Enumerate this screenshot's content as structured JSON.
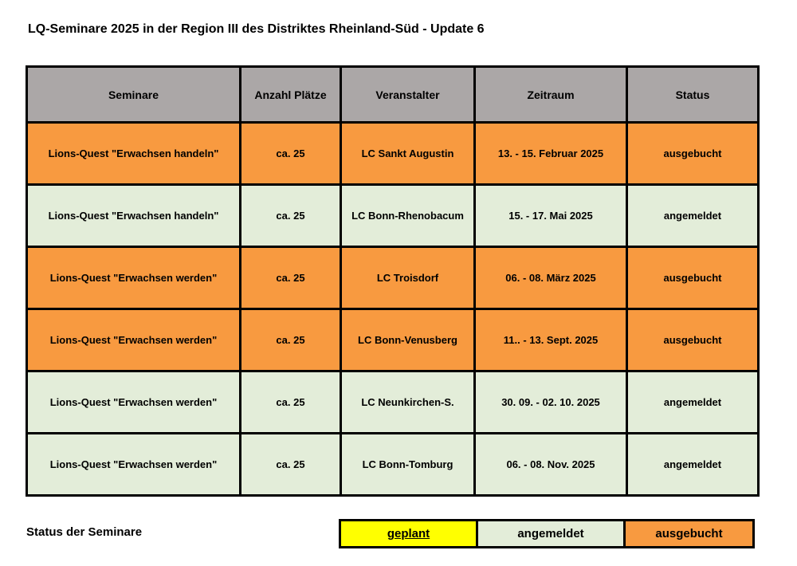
{
  "page": {
    "title": "LQ-Seminare 2025 in der Region III des Distriktes Rheinland-Süd - Update 6"
  },
  "table": {
    "columns": [
      "Seminare",
      "Anzahl Plätze",
      "Veranstalter",
      "Zeitraum",
      "Status"
    ],
    "rows": [
      {
        "seminar": "Lions-Quest \"Erwachsen handeln\"",
        "plaetze": "ca. 25",
        "veranstalter": "LC Sankt Augustin",
        "zeitraum": "13. - 15. Februar 2025",
        "status": "ausgebucht"
      },
      {
        "seminar": "Lions-Quest \"Erwachsen handeln\"",
        "plaetze": "ca. 25",
        "veranstalter": "LC Bonn-Rhenobacum",
        "zeitraum": "15. - 17. Mai 2025",
        "status": "angemeldet"
      },
      {
        "seminar": "Lions-Quest \"Erwachsen werden\"",
        "plaetze": "ca. 25",
        "veranstalter": "LC Troisdorf",
        "zeitraum": "06. - 08. März 2025",
        "status": "ausgebucht"
      },
      {
        "seminar": "Lions-Quest \"Erwachsen werden\"",
        "plaetze": "ca. 25",
        "veranstalter": "LC Bonn-Venusberg",
        "zeitraum": "11.. - 13. Sept. 2025",
        "status": "ausgebucht"
      },
      {
        "seminar": "Lions-Quest \"Erwachsen werden\"",
        "plaetze": "ca. 25",
        "veranstalter": "LC Neunkirchen-S.",
        "zeitraum": "30. 09. - 02. 10. 2025",
        "status": "angemeldet"
      },
      {
        "seminar": "Lions-Quest \"Erwachsen werden\"",
        "plaetze": "ca. 25",
        "veranstalter": "LC Bonn-Tomburg",
        "zeitraum": "06. - 08. Nov. 2025",
        "status": "angemeldet"
      }
    ]
  },
  "legend": {
    "label": "Status der Seminare",
    "items": [
      {
        "label": "geplant",
        "status": "geplant",
        "color": "#ffff00",
        "underline": true
      },
      {
        "label": "angemeldet",
        "status": "angemeldet",
        "color": "#e3edd9",
        "underline": false
      },
      {
        "label": "ausgebucht",
        "status": "ausgebucht",
        "color": "#f89a40",
        "underline": false
      }
    ]
  },
  "colors": {
    "header_bg": "#aba7a7",
    "geplant_bg": "#ffff00",
    "angemeldet_bg": "#e3edd9",
    "ausgebucht_bg": "#f89a40",
    "border": "#000000"
  }
}
